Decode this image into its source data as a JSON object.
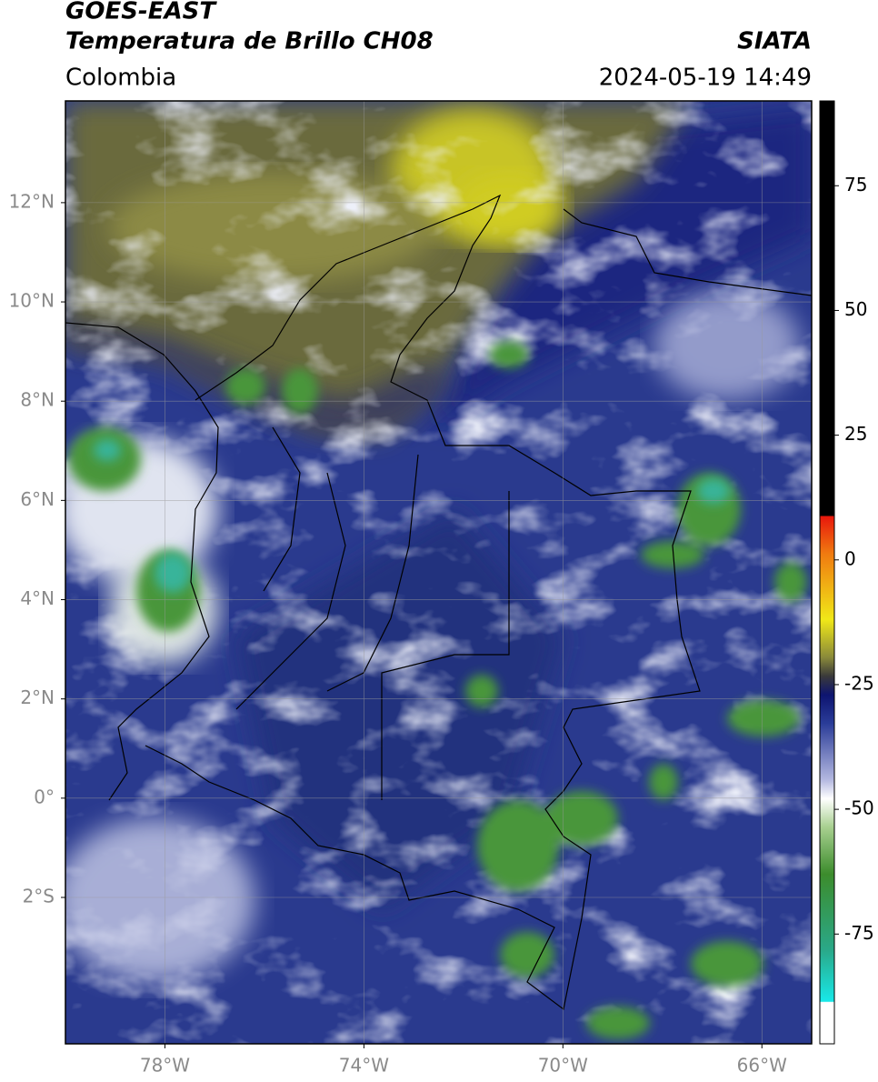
{
  "header": {
    "title_line1": "GOES-EAST",
    "title_line2": "Temperatura de Brillo CH08",
    "region": "Colombia",
    "source": "SIATA",
    "datetime": "2024-05-19 14:49"
  },
  "map": {
    "xlim": [
      -80,
      -65
    ],
    "ylim": [
      -4.95,
      14.05
    ],
    "grid": true,
    "xticks": [
      {
        "value": -78,
        "label": "78°W"
      },
      {
        "value": -74,
        "label": "74°W"
      },
      {
        "value": -70,
        "label": "70°W"
      },
      {
        "value": -66,
        "label": "66°W"
      }
    ],
    "yticks": [
      {
        "value": 12,
        "label": "12°N"
      },
      {
        "value": 10,
        "label": "10°N"
      },
      {
        "value": 8,
        "label": "8°N"
      },
      {
        "value": 6,
        "label": "6°N"
      },
      {
        "value": 4,
        "label": "4°N"
      },
      {
        "value": 2,
        "label": "2°N"
      },
      {
        "value": 0,
        "label": "0°"
      },
      {
        "value": -2,
        "label": "2°S"
      }
    ]
  },
  "colorbar": {
    "lim": [
      -97,
      92
    ],
    "ticks": [
      75,
      50,
      25,
      0,
      -25,
      -50,
      -75
    ]
  }
}
